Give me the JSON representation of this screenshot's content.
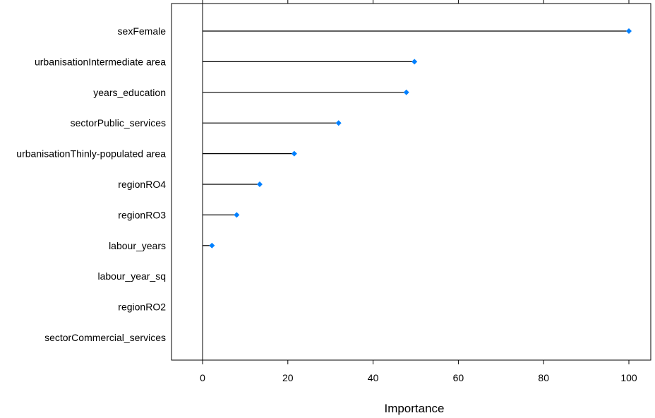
{
  "chart_data": {
    "type": "dot",
    "xlabel": "Importance",
    "xlim": [
      -7,
      107
    ],
    "xticks": [
      0,
      20,
      40,
      60,
      80,
      100
    ],
    "categories": [
      "sexFemale",
      "urbanisationIntermediate area",
      "years_education",
      "sectorPublic_services",
      "urbanisationThinly-populated area",
      "regionRO4",
      "regionRO3",
      "labour_years",
      "labour_year_sq",
      "regionRO2",
      "sectorCommercial_services"
    ],
    "values": [
      100,
      49.7,
      47.8,
      31.9,
      21.5,
      13.4,
      8.0,
      2.2,
      null,
      null,
      null
    ],
    "marker_color": "#0080ff",
    "line_color": "#000000",
    "reference_line_at": 0
  }
}
